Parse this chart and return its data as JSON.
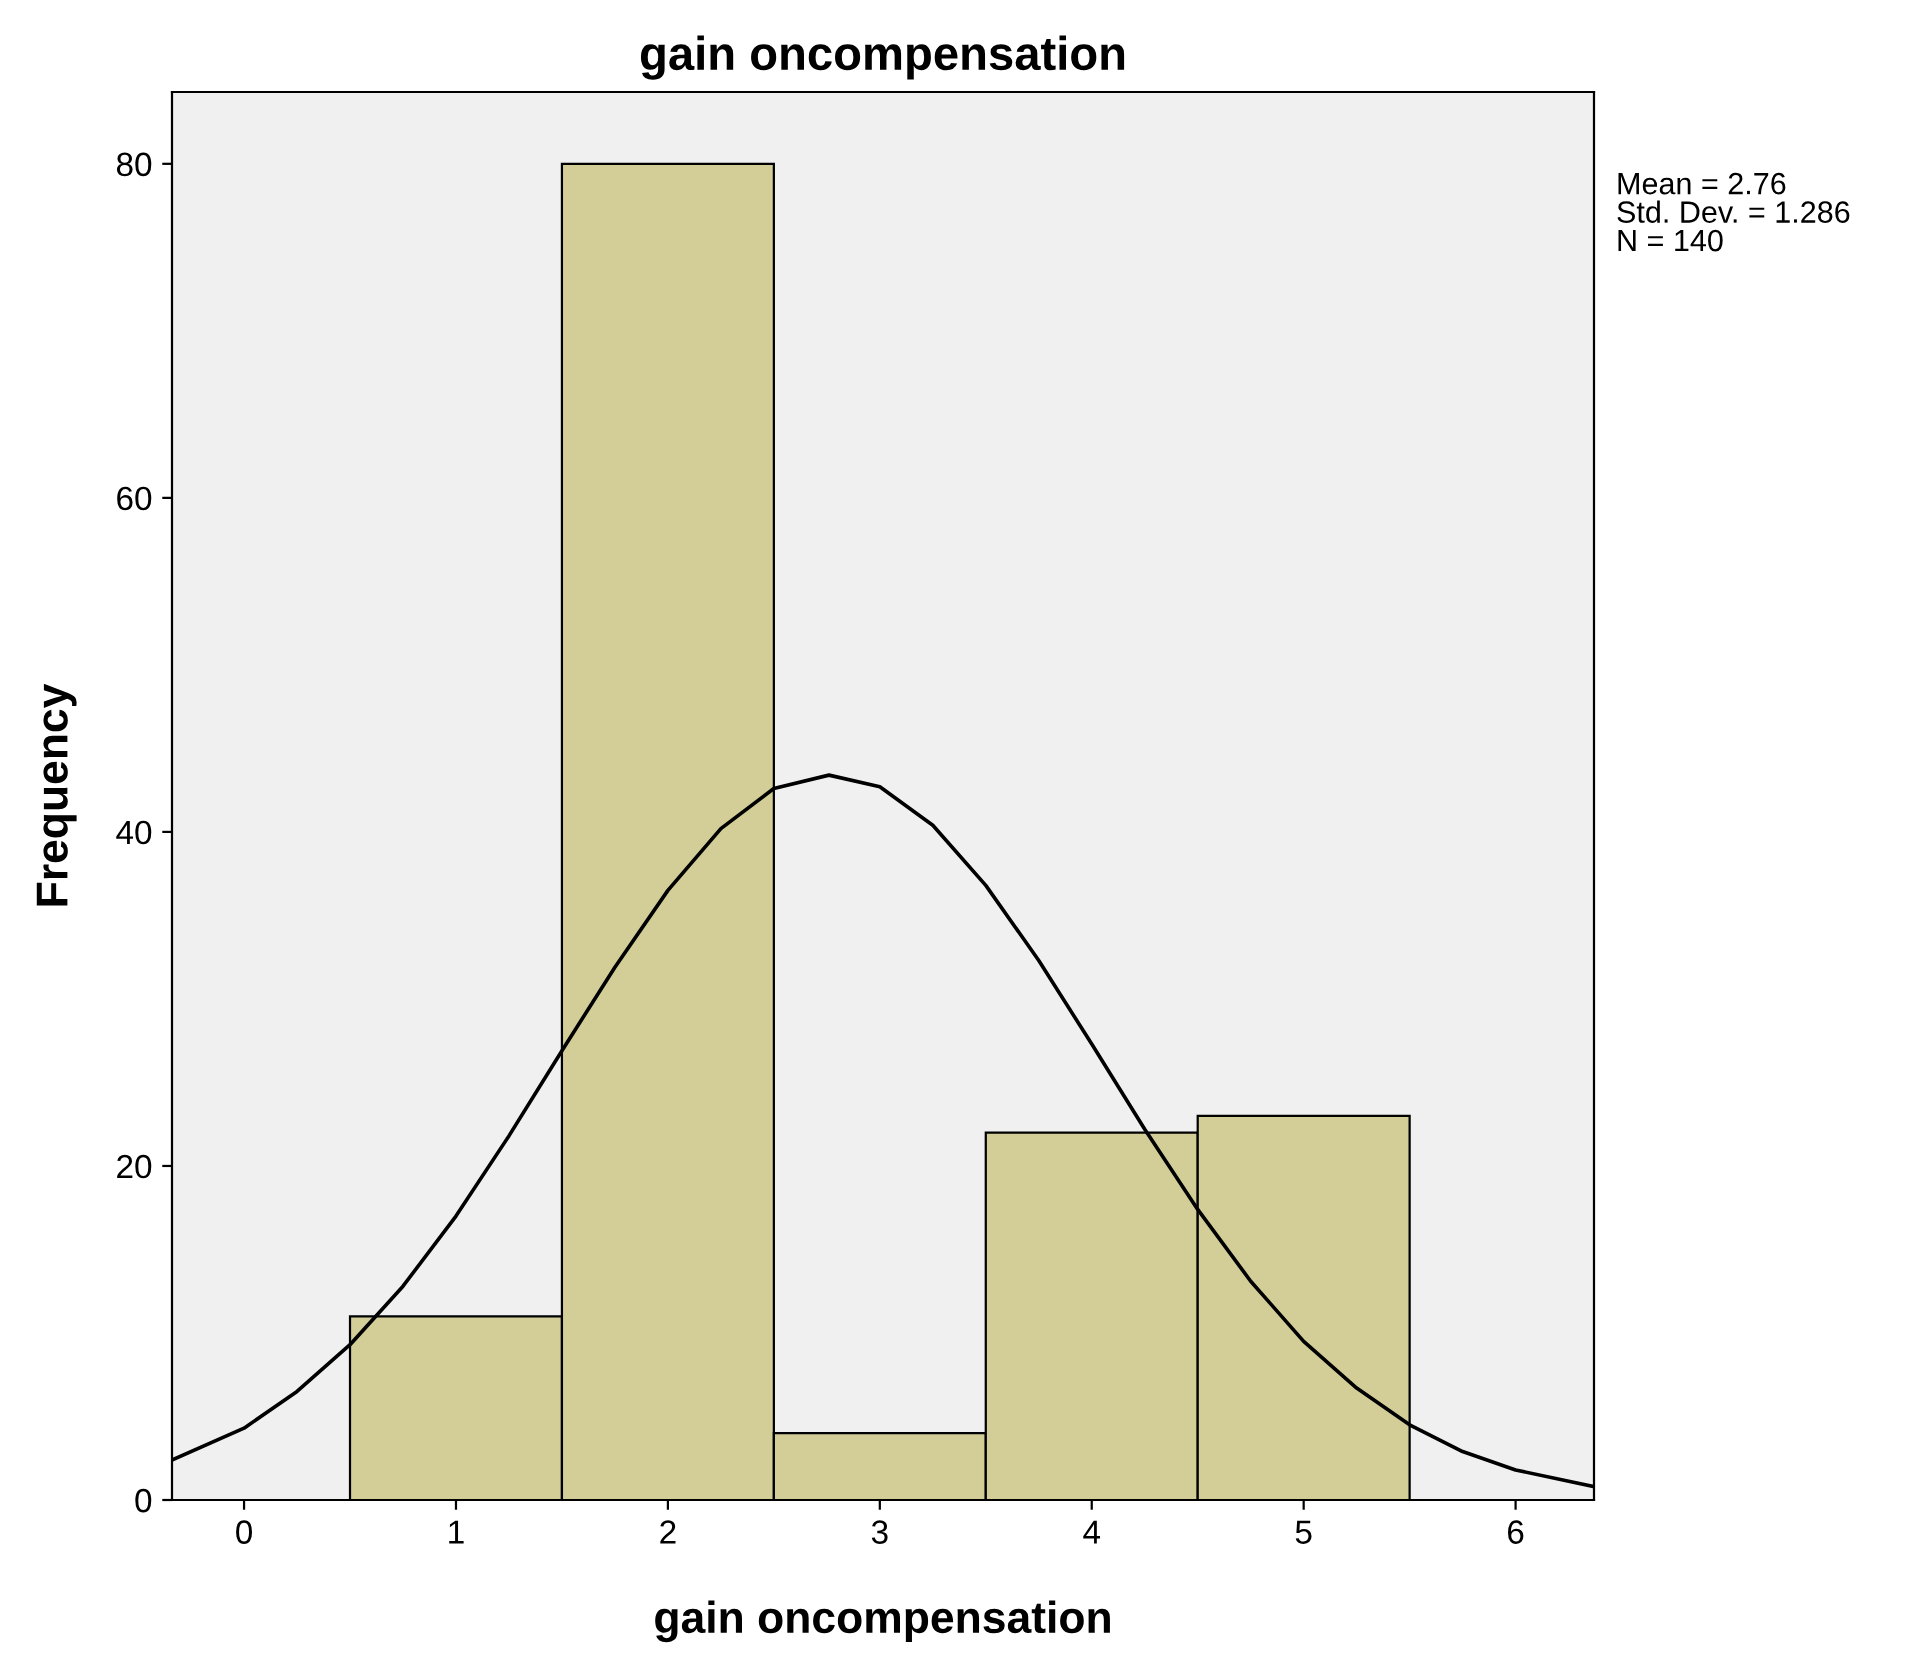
{
  "chart_data": {
    "type": "histogram",
    "title": "gain oncompensation",
    "xlabel": "gain oncompensation",
    "ylabel": "Frequency",
    "xlim": [
      -0.34,
      6.37
    ],
    "xticks": [
      0,
      1,
      2,
      3,
      4,
      5,
      6
    ],
    "ylim": [
      0,
      84.3
    ],
    "yticks": [
      0,
      20,
      40,
      60,
      80
    ],
    "grid": false,
    "annotations": [
      "Mean = 2.76",
      "Std. Dev. = 1.286",
      "N = 140"
    ],
    "series": [
      {
        "bins": [
          0.5,
          1.5,
          2.5,
          3.5,
          4.5,
          5.5
        ],
        "values": [
          11,
          80,
          4,
          22,
          23
        ],
        "color": "#d3ce98"
      },
      {
        "type": "line",
        "color": "#000000",
        "x": [
          -0.34,
          0,
          0.25,
          0.5,
          0.75,
          1,
          1.25,
          1.5,
          1.75,
          2,
          2.25,
          2.5,
          2.76,
          3,
          3.25,
          3.5,
          3.75,
          4,
          4.25,
          4.5,
          4.75,
          5,
          5.25,
          5.5,
          5.75,
          6,
          6.37
        ],
        "values": [
          2.4,
          4.3,
          6.5,
          9.3,
          12.8,
          17,
          21.8,
          26.9,
          31.9,
          36.5,
          40.2,
          42.6,
          43.4,
          42.7,
          40.4,
          36.8,
          32.3,
          27.3,
          22.2,
          17.4,
          13.1,
          9.5,
          6.7,
          4.5,
          2.9,
          1.8,
          0.8
        ]
      }
    ]
  }
}
